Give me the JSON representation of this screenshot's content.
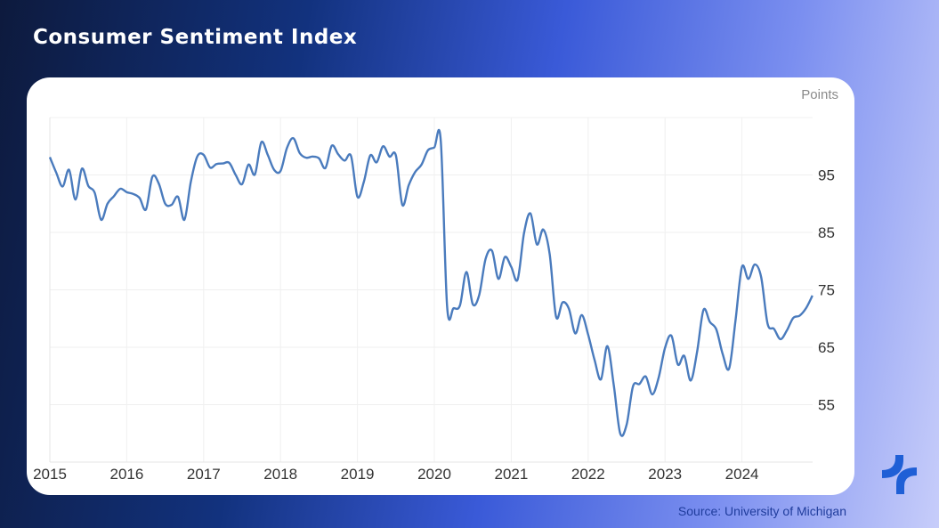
{
  "title": "Consumer Sentiment Index",
  "source": "Source: University of Michigan",
  "logo": {
    "name": "brand-logo",
    "color": "#1f5fd6"
  },
  "chart_data": {
    "type": "line",
    "title": "Consumer Sentiment Index",
    "ylabel": "Points",
    "xlabel": "",
    "x_start": "2015-01",
    "frequency": "monthly",
    "xlim": [
      "2015-01",
      "2024-12"
    ],
    "ylim": [
      45,
      105
    ],
    "x_ticks": [
      "2015",
      "2016",
      "2017",
      "2018",
      "2019",
      "2020",
      "2021",
      "2022",
      "2023",
      "2024"
    ],
    "y_ticks": [
      55,
      65,
      75,
      85,
      95
    ],
    "y_axis_side": "right",
    "grid": true,
    "line_color": "#4a7bbd",
    "series": [
      {
        "values": [
          98.1,
          95.4,
          93.0,
          95.9,
          90.7,
          96.1,
          93.1,
          91.9,
          87.2,
          90.0,
          91.3,
          92.6,
          92.0,
          91.7,
          91.0,
          89.0,
          94.7,
          93.5,
          90.0,
          89.8,
          91.2,
          87.2,
          93.8,
          98.2,
          98.5,
          96.3,
          96.9,
          97.0,
          97.1,
          95.0,
          93.4,
          96.8,
          95.1,
          100.7,
          98.5,
          95.9,
          95.7,
          99.7,
          101.4,
          98.8,
          98.0,
          98.2,
          97.9,
          96.2,
          100.1,
          98.6,
          97.5,
          98.3,
          91.2,
          93.8,
          98.4,
          97.2,
          100.0,
          98.2,
          98.4,
          89.8,
          93.2,
          95.5,
          96.8,
          99.3,
          99.8,
          101.0,
          72.0,
          71.8,
          72.3,
          78.1,
          72.5,
          74.1,
          80.4,
          81.8,
          76.9,
          80.7,
          79.0,
          76.8,
          84.9,
          88.3,
          82.9,
          85.5,
          81.2,
          70.3,
          72.8,
          71.7,
          67.4,
          70.6,
          67.2,
          62.8,
          59.4,
          65.2,
          58.4,
          50.0,
          51.5,
          58.2,
          58.6,
          59.9,
          56.8,
          59.7,
          64.9,
          67.0,
          62.0,
          63.5,
          59.2,
          64.2,
          71.5,
          69.4,
          68.1,
          63.8,
          61.3,
          69.7,
          79.0,
          76.9,
          79.4,
          77.2,
          69.1,
          68.2,
          66.4,
          67.9,
          70.1,
          70.5,
          71.8,
          74.0
        ]
      }
    ]
  }
}
